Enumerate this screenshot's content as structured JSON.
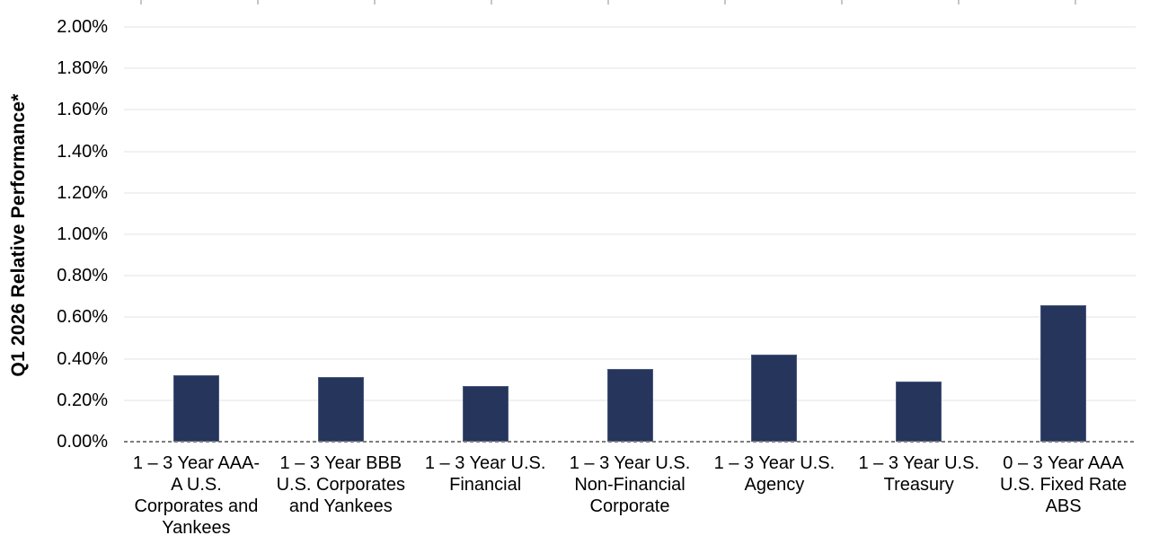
{
  "chart_data": {
    "type": "bar",
    "title": "",
    "xlabel": "",
    "ylabel": "Q1 2026 Relative Performance*",
    "unit": "%",
    "ylim": [
      0.0,
      2.0
    ],
    "y_tick_step": 0.2,
    "y_tick_labels": [
      "0.00%",
      "0.20%",
      "0.40%",
      "0.60%",
      "0.80%",
      "1.00%",
      "1.20%",
      "1.40%",
      "1.60%",
      "1.80%",
      "2.00%"
    ],
    "grid": "horizontal",
    "zero_line_style": "dashed",
    "legend": "none",
    "categories": [
      "1 – 3 Year AAA-A U.S. Corporates and Yankees",
      "1 – 3 Year BBB U.S. Corporates and Yankees",
      "1 – 3 Year U.S. Financial",
      "1 – 3 Year U.S. Non-Financial Corporate",
      "1 – 3 Year U.S. Agency",
      "1 – 3 Year U.S. Treasury",
      "0 – 3 Year AAA U.S. Fixed Rate ABS"
    ],
    "category_label_lines": [
      [
        "1 – 3 Year AAA-",
        "A U.S.",
        "Corporates and",
        "Yankees"
      ],
      [
        "1 – 3 Year BBB",
        "U.S. Corporates",
        "and Yankees"
      ],
      [
        "1 – 3 Year U.S.",
        "Financial"
      ],
      [
        "1 – 3 Year U.S.",
        "Non-Financial",
        "Corporate"
      ],
      [
        "1 – 3 Year U.S.",
        "Agency"
      ],
      [
        "1 – 3 Year U.S.",
        "Treasury"
      ],
      [
        "0 – 3 Year AAA",
        "U.S. Fixed Rate",
        "ABS"
      ]
    ],
    "values": [
      0.32,
      0.31,
      0.27,
      0.35,
      0.42,
      0.29,
      0.66
    ]
  },
  "colors": {
    "bar_fill": "#25355C",
    "bar_border": "#4C5A7E",
    "gridline": "#F1F1F1",
    "zero_line": "#7D7D7D",
    "top_tick": "#C6C6C6",
    "text": "#000000",
    "background": "#FFFFFF"
  }
}
